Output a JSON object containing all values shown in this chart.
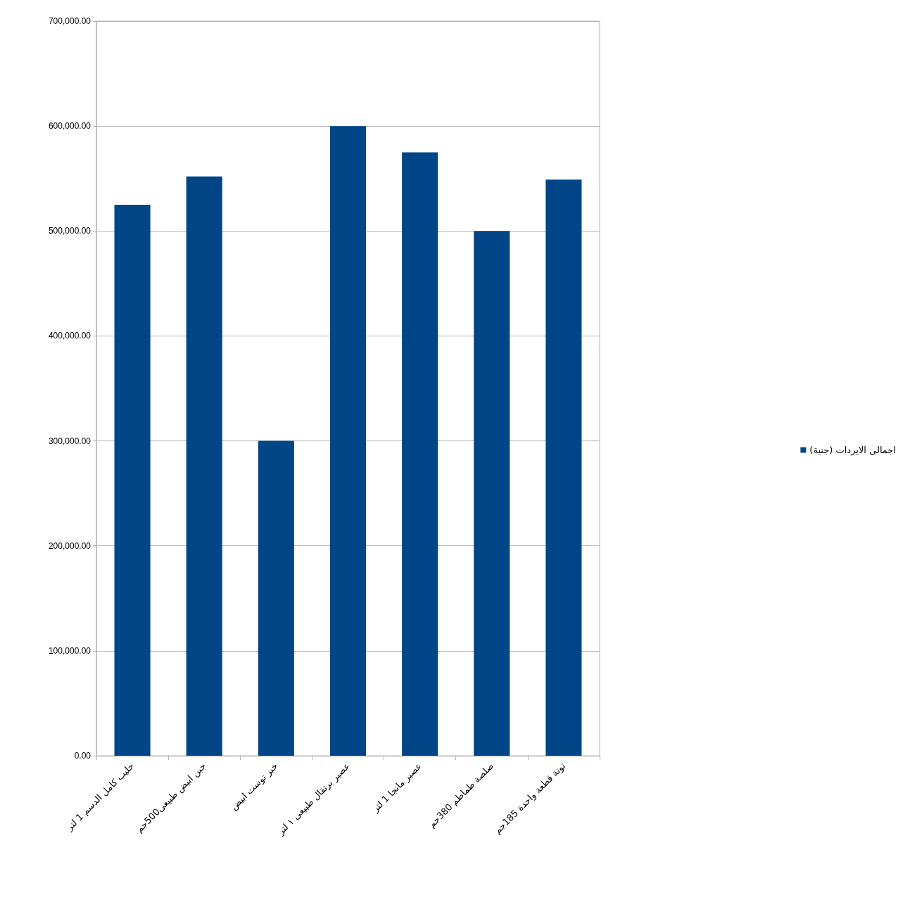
{
  "chart_data": {
    "type": "bar",
    "categories": [
      "حليب كامل الدسم 1 لتر",
      "جبن ابيض طبيعى500جم",
      "خبز توست ابيض",
      "عصير برتقال طبيعى ١ لتر",
      "عصير مانجا 1 لتر",
      "صلصة طماطم 380جم",
      "تونة قطعة واحدة 185جم"
    ],
    "series": [
      {
        "name": "اجمالى الايردات (جنية)",
        "color": "#004586",
        "values": [
          525000,
          552000,
          300000,
          600000,
          575000,
          500000,
          549000
        ]
      }
    ],
    "ylim": [
      0,
      700000
    ],
    "yticks": [
      {
        "value": 0,
        "label": "0.00"
      },
      {
        "value": 100000,
        "label": "100,000.00"
      },
      {
        "value": 200000,
        "label": "200,000.00"
      },
      {
        "value": 300000,
        "label": "300,000.00"
      },
      {
        "value": 400000,
        "label": "400,000.00"
      },
      {
        "value": 500000,
        "label": "500,000.00"
      },
      {
        "value": 600000,
        "label": "600,000.00"
      },
      {
        "value": 700000,
        "label": "700,000.00"
      }
    ],
    "grid": "y",
    "legend": "right"
  }
}
